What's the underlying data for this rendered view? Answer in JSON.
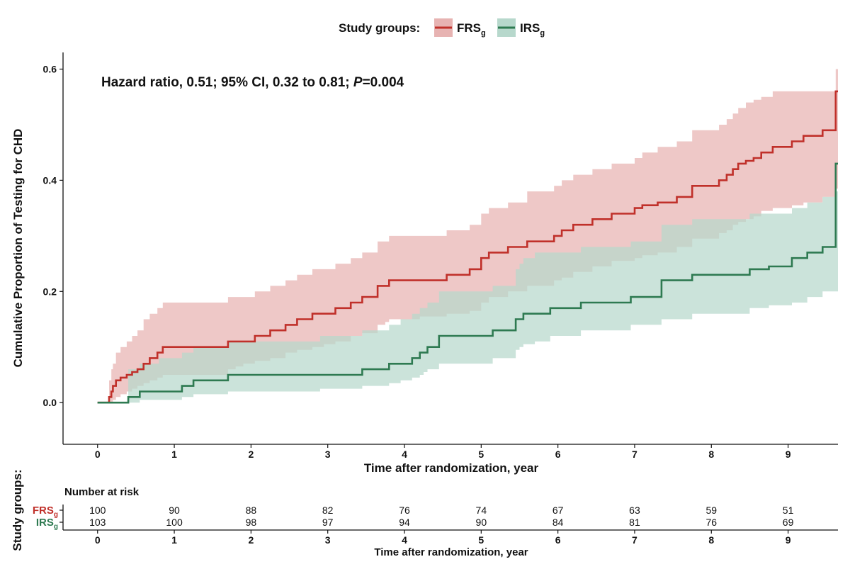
{
  "chart_data": {
    "type": "line",
    "step": true,
    "legend": {
      "title": "Study groups:",
      "placement": "top-center",
      "items": [
        {
          "label": "FRS",
          "sub": "g",
          "color": "#c0302a",
          "fill": "#e7b3b2"
        },
        {
          "label": "IRS",
          "sub": "g",
          "color": "#2e7a51",
          "fill": "#b7d8cc"
        }
      ]
    },
    "annotation": {
      "prefix": "Hazard ratio, 0.51; 95% CI, 0.32 to 0.81; ",
      "p_label": "P",
      "p_value": "=0.004"
    },
    "xlabel": "Time after randomization, year",
    "ylabel": "Cumulative Proportion of Testing for CHD",
    "xlim": [
      -0.45,
      9.65
    ],
    "ylim": [
      -0.075,
      0.63
    ],
    "xticks": [
      0,
      1,
      2,
      3,
      4,
      5,
      6,
      7,
      8,
      9
    ],
    "yticks": [
      0.0,
      0.2,
      0.4,
      0.6
    ],
    "ytick_labels": [
      "0.0",
      "0.2",
      "0.4",
      "0.6"
    ],
    "series": [
      {
        "name": "FRS",
        "x": [
          0,
          0.15,
          0.18,
          0.2,
          0.24,
          0.3,
          0.38,
          0.45,
          0.52,
          0.6,
          0.68,
          0.78,
          0.85,
          1.7,
          1.8,
          1.9,
          2.05,
          2.25,
          2.45,
          2.6,
          2.8,
          2.95,
          3.1,
          3.3,
          3.45,
          3.65,
          3.75,
          3.8,
          4.2,
          4.55,
          4.85,
          5.0,
          5.1,
          5.35,
          5.6,
          5.95,
          6.05,
          6.2,
          6.45,
          6.7,
          7.0,
          7.1,
          7.3,
          7.55,
          7.75,
          8.1,
          8.2,
          8.28,
          8.35,
          8.45,
          8.55,
          8.65,
          8.8,
          9.05,
          9.2,
          9.45,
          9.62,
          9.65
        ],
        "y": [
          0,
          0.01,
          0.02,
          0.03,
          0.04,
          0.045,
          0.05,
          0.055,
          0.06,
          0.07,
          0.08,
          0.09,
          0.1,
          0.11,
          0.11,
          0.11,
          0.12,
          0.13,
          0.14,
          0.15,
          0.16,
          0.16,
          0.17,
          0.18,
          0.19,
          0.21,
          0.21,
          0.22,
          0.22,
          0.23,
          0.24,
          0.26,
          0.27,
          0.28,
          0.29,
          0.3,
          0.31,
          0.32,
          0.33,
          0.34,
          0.35,
          0.355,
          0.36,
          0.37,
          0.39,
          0.4,
          0.41,
          0.42,
          0.43,
          0.435,
          0.44,
          0.45,
          0.46,
          0.47,
          0.48,
          0.49,
          0.56,
          0.56
        ],
        "ci_lower": [
          0,
          0,
          0,
          0.005,
          0.01,
          0.015,
          0.02,
          0.025,
          0.03,
          0.035,
          0.04,
          0.045,
          0.05,
          0.06,
          0.065,
          0.07,
          0.075,
          0.08,
          0.09,
          0.095,
          0.1,
          0.105,
          0.11,
          0.12,
          0.125,
          0.14,
          0.145,
          0.15,
          0.155,
          0.16,
          0.165,
          0.18,
          0.19,
          0.2,
          0.21,
          0.22,
          0.225,
          0.235,
          0.245,
          0.255,
          0.26,
          0.265,
          0.27,
          0.28,
          0.295,
          0.305,
          0.31,
          0.32,
          0.325,
          0.33,
          0.335,
          0.345,
          0.35,
          0.355,
          0.36,
          0.37,
          0.385,
          0.385
        ],
        "ci_upper": [
          0,
          0.04,
          0.06,
          0.07,
          0.09,
          0.1,
          0.11,
          0.12,
          0.13,
          0.15,
          0.16,
          0.17,
          0.18,
          0.19,
          0.19,
          0.19,
          0.2,
          0.21,
          0.22,
          0.23,
          0.24,
          0.24,
          0.25,
          0.26,
          0.27,
          0.29,
          0.29,
          0.3,
          0.3,
          0.31,
          0.32,
          0.34,
          0.35,
          0.36,
          0.38,
          0.39,
          0.4,
          0.41,
          0.42,
          0.43,
          0.44,
          0.45,
          0.46,
          0.47,
          0.49,
          0.5,
          0.51,
          0.52,
          0.53,
          0.54,
          0.545,
          0.55,
          0.56,
          0.56,
          0.56,
          0.56,
          0.6,
          0.6
        ]
      },
      {
        "name": "IRS",
        "x": [
          0,
          0.4,
          0.55,
          0.8,
          1.1,
          1.25,
          1.7,
          2.9,
          3.45,
          3.8,
          3.95,
          4.1,
          4.2,
          4.25,
          4.3,
          4.45,
          5.15,
          5.45,
          5.5,
          5.55,
          5.7,
          5.9,
          6.3,
          6.95,
          7.35,
          7.75,
          8.5,
          8.75,
          9.05,
          9.25,
          9.45,
          9.62,
          9.65
        ],
        "y": [
          0,
          0.01,
          0.02,
          0.02,
          0.03,
          0.04,
          0.05,
          0.05,
          0.06,
          0.07,
          0.07,
          0.08,
          0.09,
          0.09,
          0.1,
          0.12,
          0.13,
          0.15,
          0.15,
          0.16,
          0.16,
          0.17,
          0.18,
          0.19,
          0.22,
          0.23,
          0.24,
          0.245,
          0.26,
          0.27,
          0.28,
          0.43,
          0.43
        ],
        "ci_lower": [
          0,
          0,
          0.005,
          0.005,
          0.01,
          0.015,
          0.02,
          0.025,
          0.03,
          0.035,
          0.04,
          0.045,
          0.05,
          0.055,
          0.06,
          0.07,
          0.08,
          0.095,
          0.1,
          0.105,
          0.11,
          0.12,
          0.13,
          0.14,
          0.15,
          0.16,
          0.17,
          0.175,
          0.18,
          0.19,
          0.2,
          0.2,
          0.2
        ],
        "ci_upper": [
          0,
          0.06,
          0.07,
          0.08,
          0.09,
          0.1,
          0.11,
          0.12,
          0.13,
          0.14,
          0.15,
          0.16,
          0.17,
          0.17,
          0.18,
          0.2,
          0.21,
          0.24,
          0.25,
          0.26,
          0.27,
          0.27,
          0.28,
          0.29,
          0.32,
          0.33,
          0.34,
          0.34,
          0.35,
          0.36,
          0.37,
          0.38,
          0.38
        ]
      }
    ],
    "risk_table": {
      "title": "Number at risk",
      "group_axis_label": "Study groups:",
      "xlabel": "Time after randomization, year",
      "times": [
        0,
        1,
        2,
        3,
        4,
        5,
        6,
        7,
        8,
        9
      ],
      "rows": [
        {
          "label": "FRS",
          "sub": "g",
          "color": "#c0302a",
          "counts": [
            "100",
            "90",
            "88",
            "82",
            "76",
            "74",
            "67",
            "63",
            "59",
            "51"
          ]
        },
        {
          "label": "IRS",
          "sub": "g",
          "color": "#2e7a51",
          "counts": [
            "103",
            "100",
            "98",
            "97",
            "94",
            "90",
            "84",
            "81",
            "76",
            "69"
          ]
        }
      ]
    }
  }
}
